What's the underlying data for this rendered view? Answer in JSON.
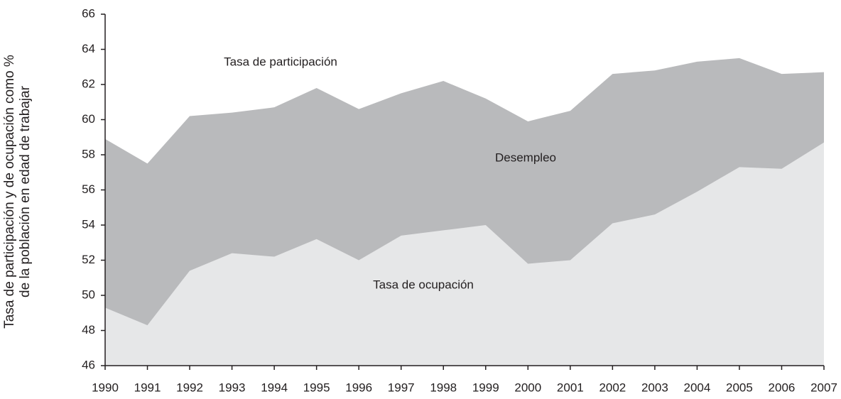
{
  "chart_data": {
    "type": "area",
    "ylabel": [
      "Tasa de participación y de ocupación como %",
      "de la población en edad de trabajar"
    ],
    "x": [
      1990,
      1991,
      1992,
      1993,
      1994,
      1995,
      1996,
      1997,
      1998,
      1999,
      2000,
      2001,
      2002,
      2003,
      2004,
      2005,
      2006,
      2007
    ],
    "xlim": [
      1990,
      2007
    ],
    "series": [
      {
        "name": "Tasa de participación",
        "color": "#b9babc",
        "values": [
          58.9,
          57.5,
          60.2,
          60.4,
          60.7,
          61.8,
          60.6,
          61.5,
          62.2,
          61.2,
          59.9,
          60.5,
          62.6,
          62.8,
          63.3,
          63.5,
          62.6,
          62.7
        ]
      },
      {
        "name": "Tasa de ocupación",
        "color": "#e6e7e8",
        "values": [
          49.3,
          48.3,
          51.4,
          52.4,
          52.2,
          53.2,
          52.0,
          53.4,
          53.7,
          54.0,
          51.8,
          52.0,
          54.1,
          54.6,
          55.9,
          57.3,
          57.2,
          58.7
        ]
      }
    ],
    "annotations": [
      "Desempleo"
    ],
    "ylim": [
      46,
      66
    ],
    "yticks": [
      46,
      48,
      50,
      52,
      54,
      56,
      58,
      60,
      62,
      64,
      66
    ]
  }
}
